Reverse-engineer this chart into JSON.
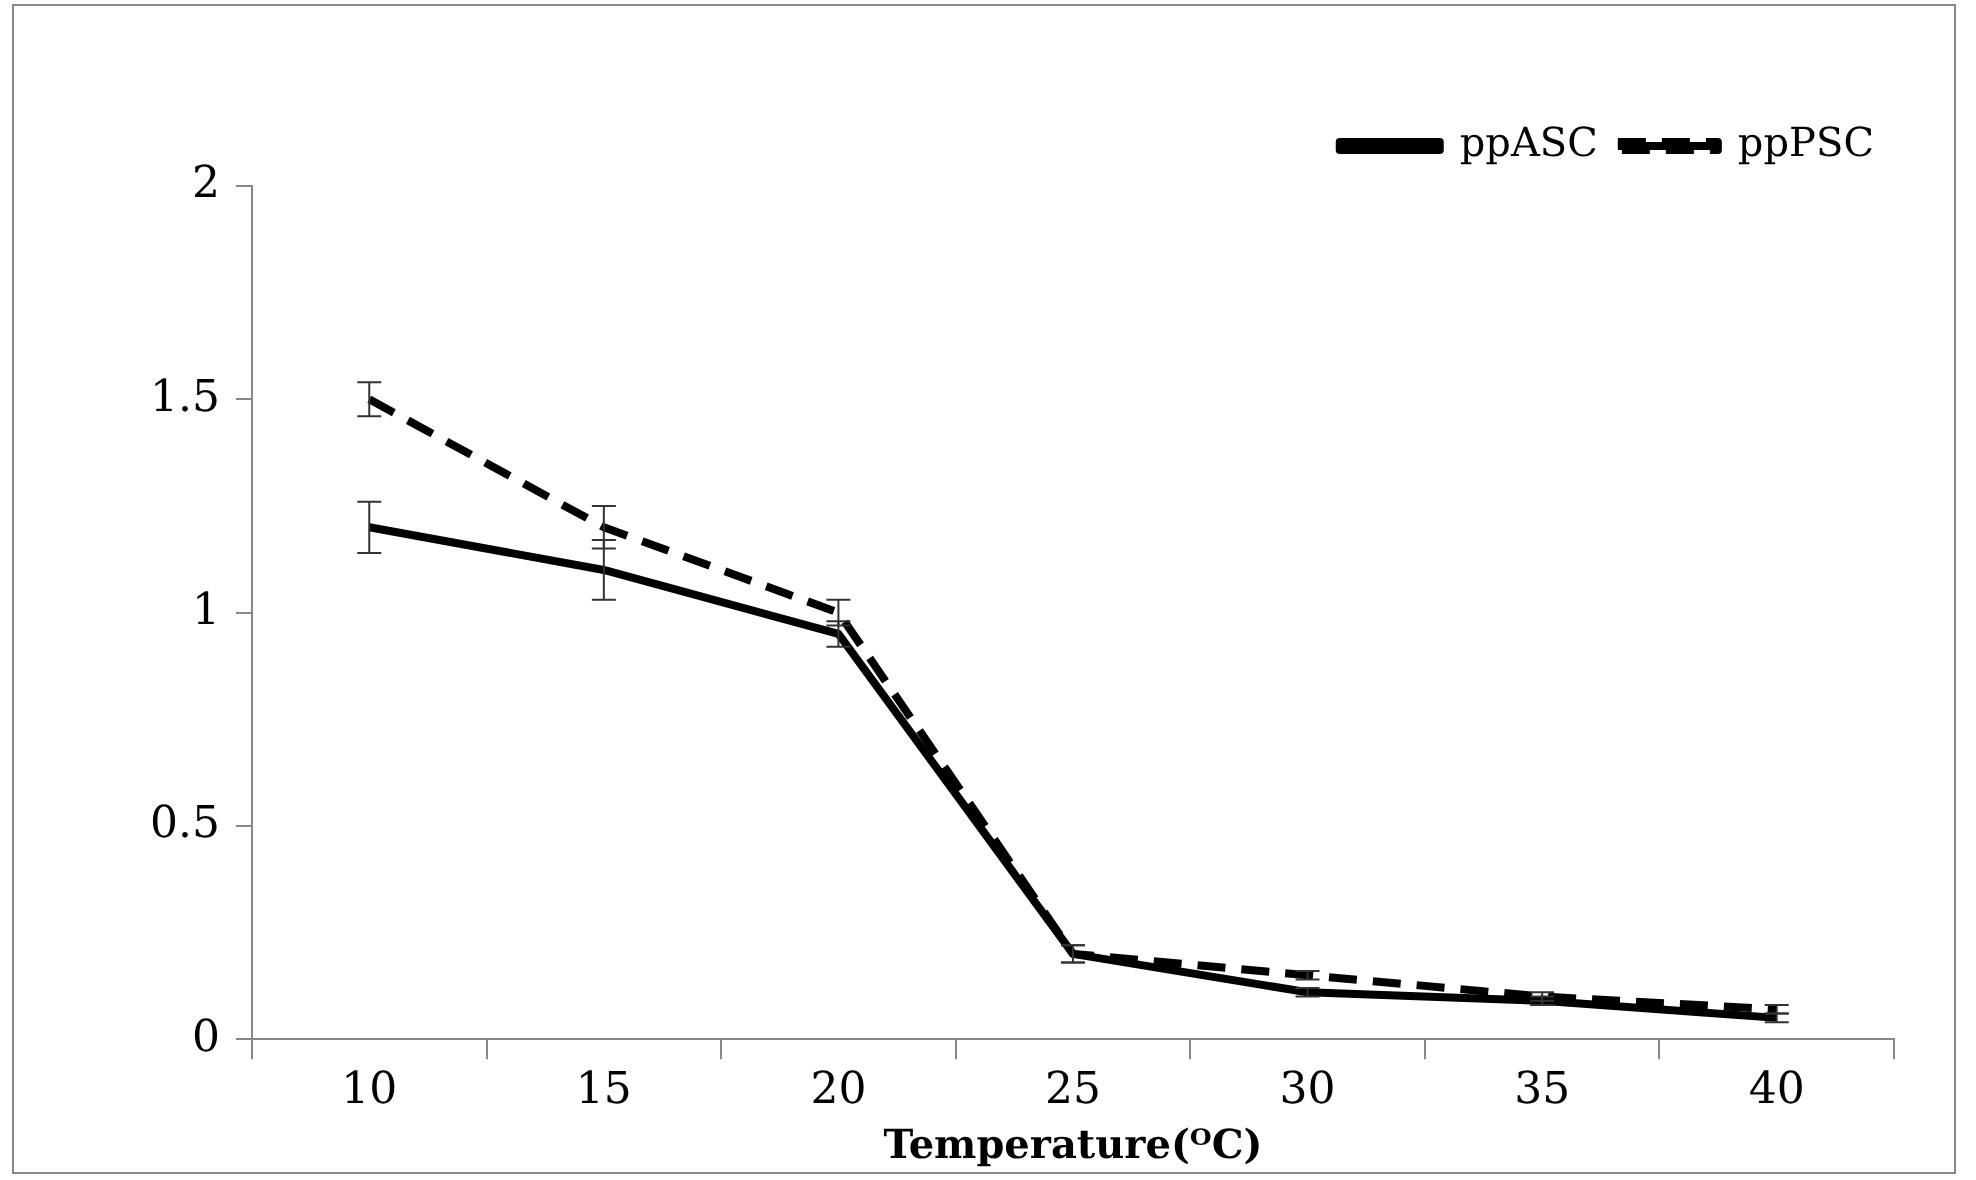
{
  "chart_data": {
    "type": "line",
    "xlabel": "Temperature(ᴼC)",
    "categories": [
      "10",
      "15",
      "20",
      "25",
      "30",
      "35",
      "40"
    ],
    "series": [
      {
        "name": "ppASC",
        "color": "#000000",
        "line_style": "solid",
        "values": [
          1.2,
          1.1,
          0.95,
          0.2,
          0.11,
          0.09,
          0.05
        ],
        "errors": [
          0.06,
          0.07,
          0.03,
          0.02,
          0.01,
          0.01,
          0.01
        ]
      },
      {
        "name": "ppPSC",
        "color": "#000000",
        "line_style": "dashed",
        "values": [
          1.5,
          1.2,
          1.0,
          0.2,
          0.15,
          0.1,
          0.07
        ],
        "errors": [
          0.04,
          0.05,
          0.03,
          0.02,
          0.01,
          0.01,
          0.01
        ]
      }
    ],
    "ylim": [
      0,
      2
    ],
    "yticks": [
      0,
      0.5,
      1,
      1.5,
      2
    ],
    "grid": false,
    "legend": "top right",
    "marker": "none"
  }
}
